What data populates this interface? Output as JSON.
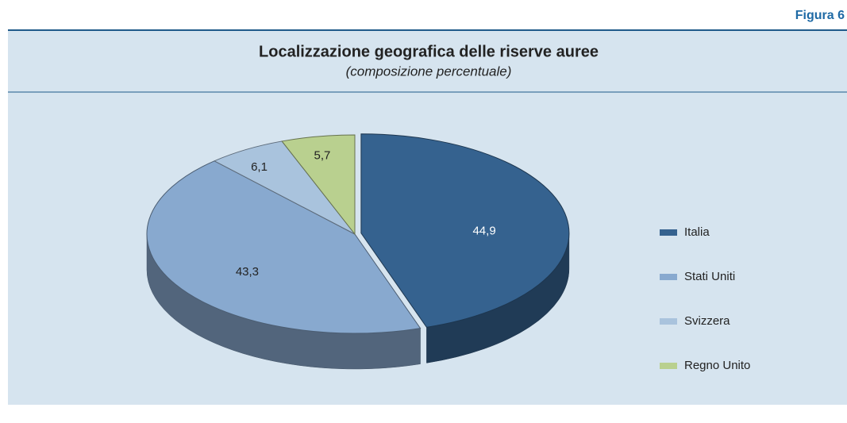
{
  "chart_data": {
    "type": "pie3d",
    "figure_label": "Figura 6",
    "title": "Localizzazione geografica delle riserve auree",
    "subtitle": "(composizione percentuale)",
    "categories": [
      "Italia",
      "Stati Uniti",
      "Svizzera",
      "Regno Unito"
    ],
    "values": [
      44.9,
      43.3,
      6.1,
      5.7
    ],
    "value_labels": [
      "44,9",
      "43,3",
      "6,1",
      "5,7"
    ],
    "colors": [
      "#35628f",
      "#88a9cf",
      "#a9c3dd",
      "#b9d08f"
    ],
    "legend": "right"
  }
}
